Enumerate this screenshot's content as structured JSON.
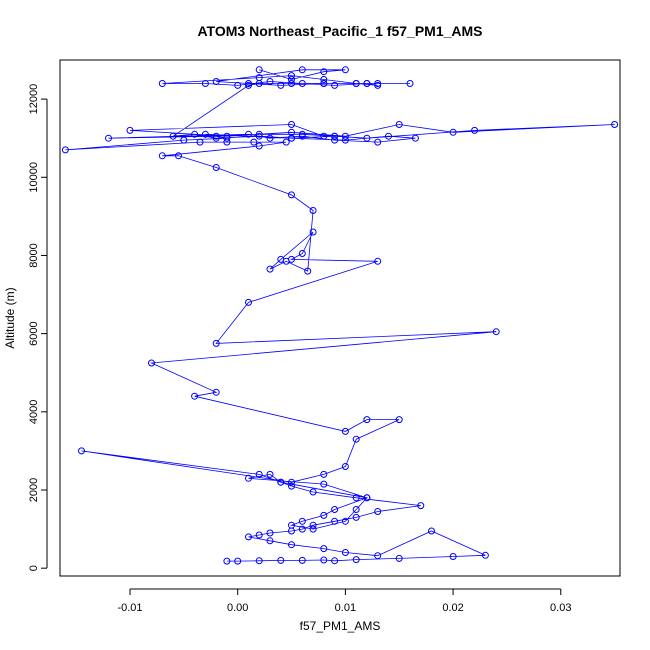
{
  "chart_data": {
    "type": "line",
    "title": "ATOM3 Northeast_Pacific_1 f57_PM1_AMS",
    "xlabel": "f57_PM1_AMS",
    "ylabel": "Altitude (m)",
    "xlim": [
      -0.0165,
      0.0355
    ],
    "ylim": [
      -200,
      13000
    ],
    "xticks": [
      -0.01,
      0.0,
      0.01,
      0.02,
      0.03
    ],
    "xtick_labels": [
      "-0.01",
      "0.00",
      "0.01",
      "0.02",
      "0.03"
    ],
    "yticks": [
      0,
      2000,
      4000,
      6000,
      8000,
      10000,
      12000
    ],
    "ytick_labels": [
      "0",
      "2000",
      "4000",
      "6000",
      "8000",
      "10000",
      "12000"
    ],
    "grid": false,
    "markers": "open-circle",
    "series": [
      {
        "color": "#0000ff",
        "x": [
          -0.001,
          0.0,
          0.002,
          0.004,
          0.006,
          0.008,
          0.009,
          0.011,
          0.015,
          0.02,
          0.023,
          0.018,
          0.013,
          0.01,
          0.008,
          0.005,
          0.003,
          0.001,
          0.002,
          0.003,
          0.005,
          0.006,
          0.007,
          0.009,
          0.011,
          0.013,
          0.017,
          0.011,
          0.007,
          0.005,
          0.004,
          0.003,
          0.001,
          0.008,
          0.012,
          0.009,
          0.008,
          0.006,
          0.005,
          0.007,
          0.01,
          0.011,
          0.012,
          0.004,
          0.002,
          -0.0145,
          0.005,
          0.008,
          0.01,
          0.011,
          0.015,
          0.012,
          0.01,
          -0.004,
          -0.002,
          -0.008,
          0.024,
          -0.002,
          0.001,
          0.013,
          0.005,
          0.006,
          0.007,
          0.004,
          0.003,
          0.0045,
          0.0065,
          0.007,
          0.005,
          -0.002,
          -0.0055,
          -0.007,
          0.002,
          0.0045,
          0.0015,
          -0.001,
          -0.0035,
          -0.016,
          -0.005,
          -0.001,
          -0.003,
          0.005,
          0.01,
          0.014,
          0.0165,
          0.013,
          0.009,
          0.006,
          0.003,
          0.001,
          -0.012,
          -0.002,
          0.002,
          0.006,
          0.009,
          0.012,
          0.022,
          0.035,
          0.02,
          0.015,
          0.01,
          0.005,
          -0.001,
          -0.01,
          0.005,
          0.008,
          0.009,
          0.005,
          0.002,
          -0.002,
          -0.004,
          -0.006,
          0.001,
          0.002,
          0.005,
          0.008,
          0.011,
          0.013,
          0.016,
          0.012,
          0.009,
          0.006,
          0.003,
          0.0,
          -0.003,
          -0.007,
          0.002,
          0.005,
          0.008,
          0.011,
          0.013,
          0.012,
          0.008,
          0.004,
          0.001,
          -0.002,
          0.006,
          0.01,
          0.008,
          0.005,
          0.002
        ],
        "y": [
          180,
          180,
          190,
          200,
          200,
          210,
          190,
          220,
          250,
          300,
          330,
          950,
          320,
          400,
          500,
          600,
          700,
          800,
          850,
          900,
          950,
          1000,
          1100,
          1200,
          1300,
          1450,
          1600,
          1800,
          1950,
          2100,
          2200,
          2400,
          2300,
          2150,
          1800,
          1500,
          1350,
          1200,
          1100,
          1000,
          1200,
          1500,
          1800,
          2200,
          2400,
          3000,
          2200,
          2400,
          2600,
          3300,
          3800,
          3800,
          3500,
          4400,
          4500,
          5250,
          6050,
          5750,
          6800,
          7850,
          7900,
          8050,
          8600,
          7900,
          7650,
          7850,
          7600,
          9150,
          9550,
          10250,
          10550,
          10550,
          10800,
          10900,
          10900,
          10900,
          10900,
          10700,
          10950,
          11000,
          11100,
          11000,
          10950,
          11050,
          11000,
          10900,
          10950,
          11050,
          11000,
          11100,
          11000,
          11050,
          11100,
          11100,
          11050,
          11000,
          11200,
          11350,
          11150,
          11350,
          11050,
          11150,
          11050,
          11200,
          11350,
          11050,
          11050,
          11000,
          11050,
          11000,
          11100,
          11050,
          12350,
          12400,
          12400,
          12400,
          12400,
          12400,
          12400,
          12400,
          12350,
          12400,
          12450,
          12350,
          12400,
          12400,
          12550,
          12600,
          12500,
          12400,
          12350,
          12400,
          12400,
          12350,
          12400,
          12450,
          12750,
          12750,
          12700,
          12500,
          12750
        ]
      }
    ]
  }
}
